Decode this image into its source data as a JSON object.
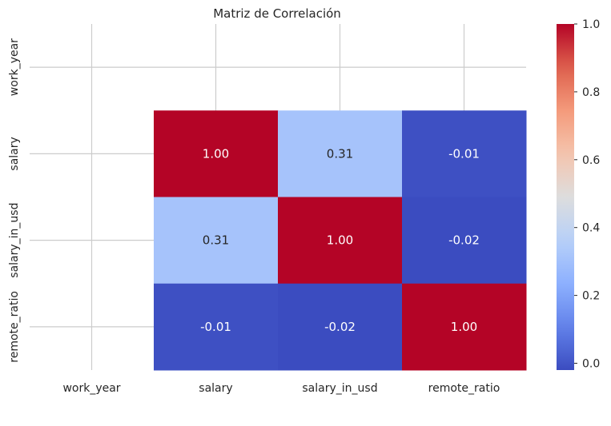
{
  "chart_data": {
    "type": "heatmap",
    "title": "Matriz de Correlación",
    "xlabel": "",
    "ylabel": "",
    "x_categories": [
      "work_year",
      "salary",
      "salary_in_usd",
      "remote_ratio"
    ],
    "y_categories": [
      "work_year",
      "salary",
      "salary_in_usd",
      "remote_ratio"
    ],
    "values": [
      [
        null,
        null,
        null,
        null
      ],
      [
        null,
        1.0,
        0.31,
        -0.01
      ],
      [
        null,
        0.31,
        1.0,
        -0.02
      ],
      [
        null,
        -0.01,
        -0.02,
        1.0
      ]
    ],
    "value_labels": [
      [
        "",
        "",
        "",
        ""
      ],
      [
        "",
        "1.00",
        "0.31",
        "-0.01"
      ],
      [
        "",
        "0.31",
        "1.00",
        "-0.02"
      ],
      [
        "",
        "-0.01",
        "-0.02",
        "1.00"
      ]
    ],
    "colorbar": {
      "colormap": "coolwarm",
      "range": [
        -0.02,
        1.0
      ],
      "ticks": [
        0.0,
        0.2,
        0.4,
        0.6,
        0.8,
        1.0
      ],
      "tick_labels": [
        "0.0",
        "0.2",
        "0.4",
        "0.6",
        "0.8",
        "1.0"
      ]
    },
    "grid": true,
    "colors": {
      "grid": "#cccccc",
      "text_on_dark": "#ffffff",
      "text_on_light": "#262626"
    }
  }
}
